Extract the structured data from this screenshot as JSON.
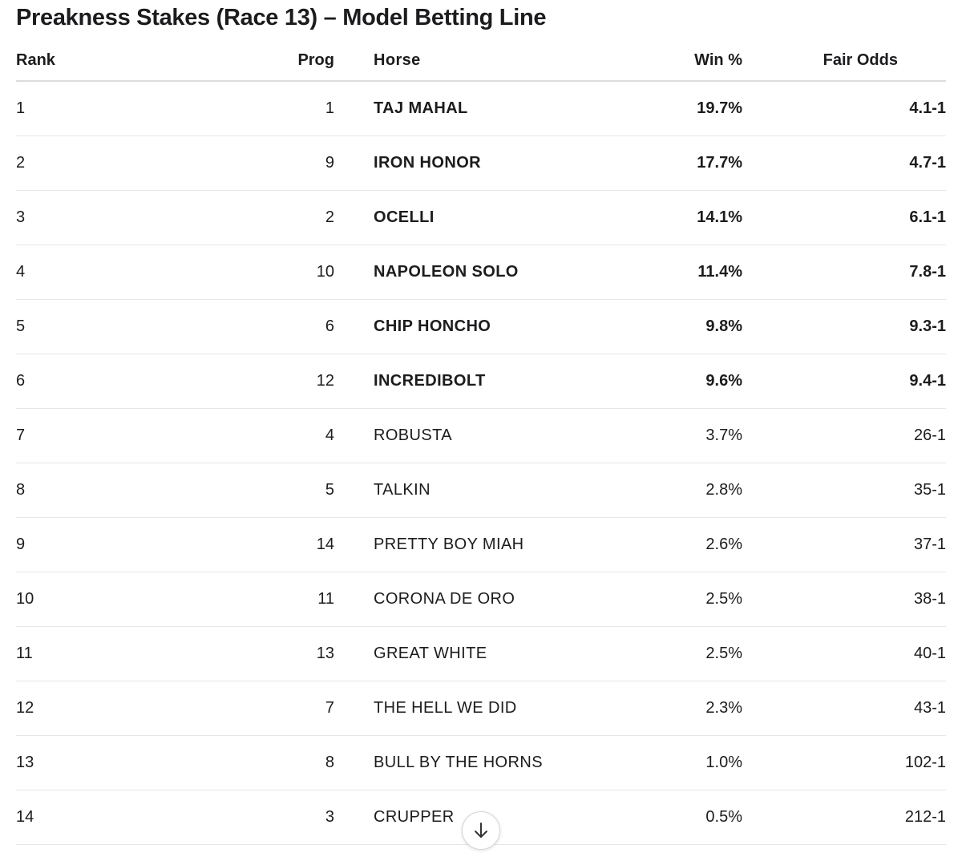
{
  "header": {
    "title": "Preakness Stakes (Race 13) – Model Betting Line"
  },
  "table": {
    "columns": [
      "Rank",
      "Prog",
      "Horse",
      "Win %",
      "Fair Odds"
    ],
    "rows": [
      [
        "1",
        "1",
        "TAJ MAHAL",
        "19.7%",
        "4.1-1"
      ],
      [
        "2",
        "9",
        "IRON HONOR",
        "17.7%",
        "4.7-1"
      ],
      [
        "3",
        "2",
        "OCELLI",
        "14.1%",
        "6.1-1"
      ],
      [
        "4",
        "10",
        "NAPOLEON SOLO",
        "11.4%",
        "7.8-1"
      ],
      [
        "5",
        "6",
        "CHIP HONCHO",
        "9.8%",
        "9.3-1"
      ],
      [
        "6",
        "12",
        "INCREDIBOLT",
        "9.6%",
        "9.4-1"
      ],
      [
        "7",
        "4",
        "ROBUSTA",
        "3.7%",
        "26-1"
      ],
      [
        "8",
        "5",
        "TALKIN",
        "2.8%",
        "35-1"
      ],
      [
        "9",
        "14",
        "PRETTY BOY MIAH",
        "2.6%",
        "37-1"
      ],
      [
        "10",
        "11",
        "CORONA DE ORO",
        "2.5%",
        "38-1"
      ],
      [
        "11",
        "13",
        "GREAT WHITE",
        "2.5%",
        "40-1"
      ],
      [
        "12",
        "7",
        "THE HELL WE DID",
        "2.3%",
        "43-1"
      ],
      [
        "13",
        "8",
        "BULL BY THE HORNS",
        "1.0%",
        "102-1"
      ],
      [
        "14",
        "3",
        "CRUPPER",
        "0.5%",
        "212-1"
      ]
    ]
  }
}
